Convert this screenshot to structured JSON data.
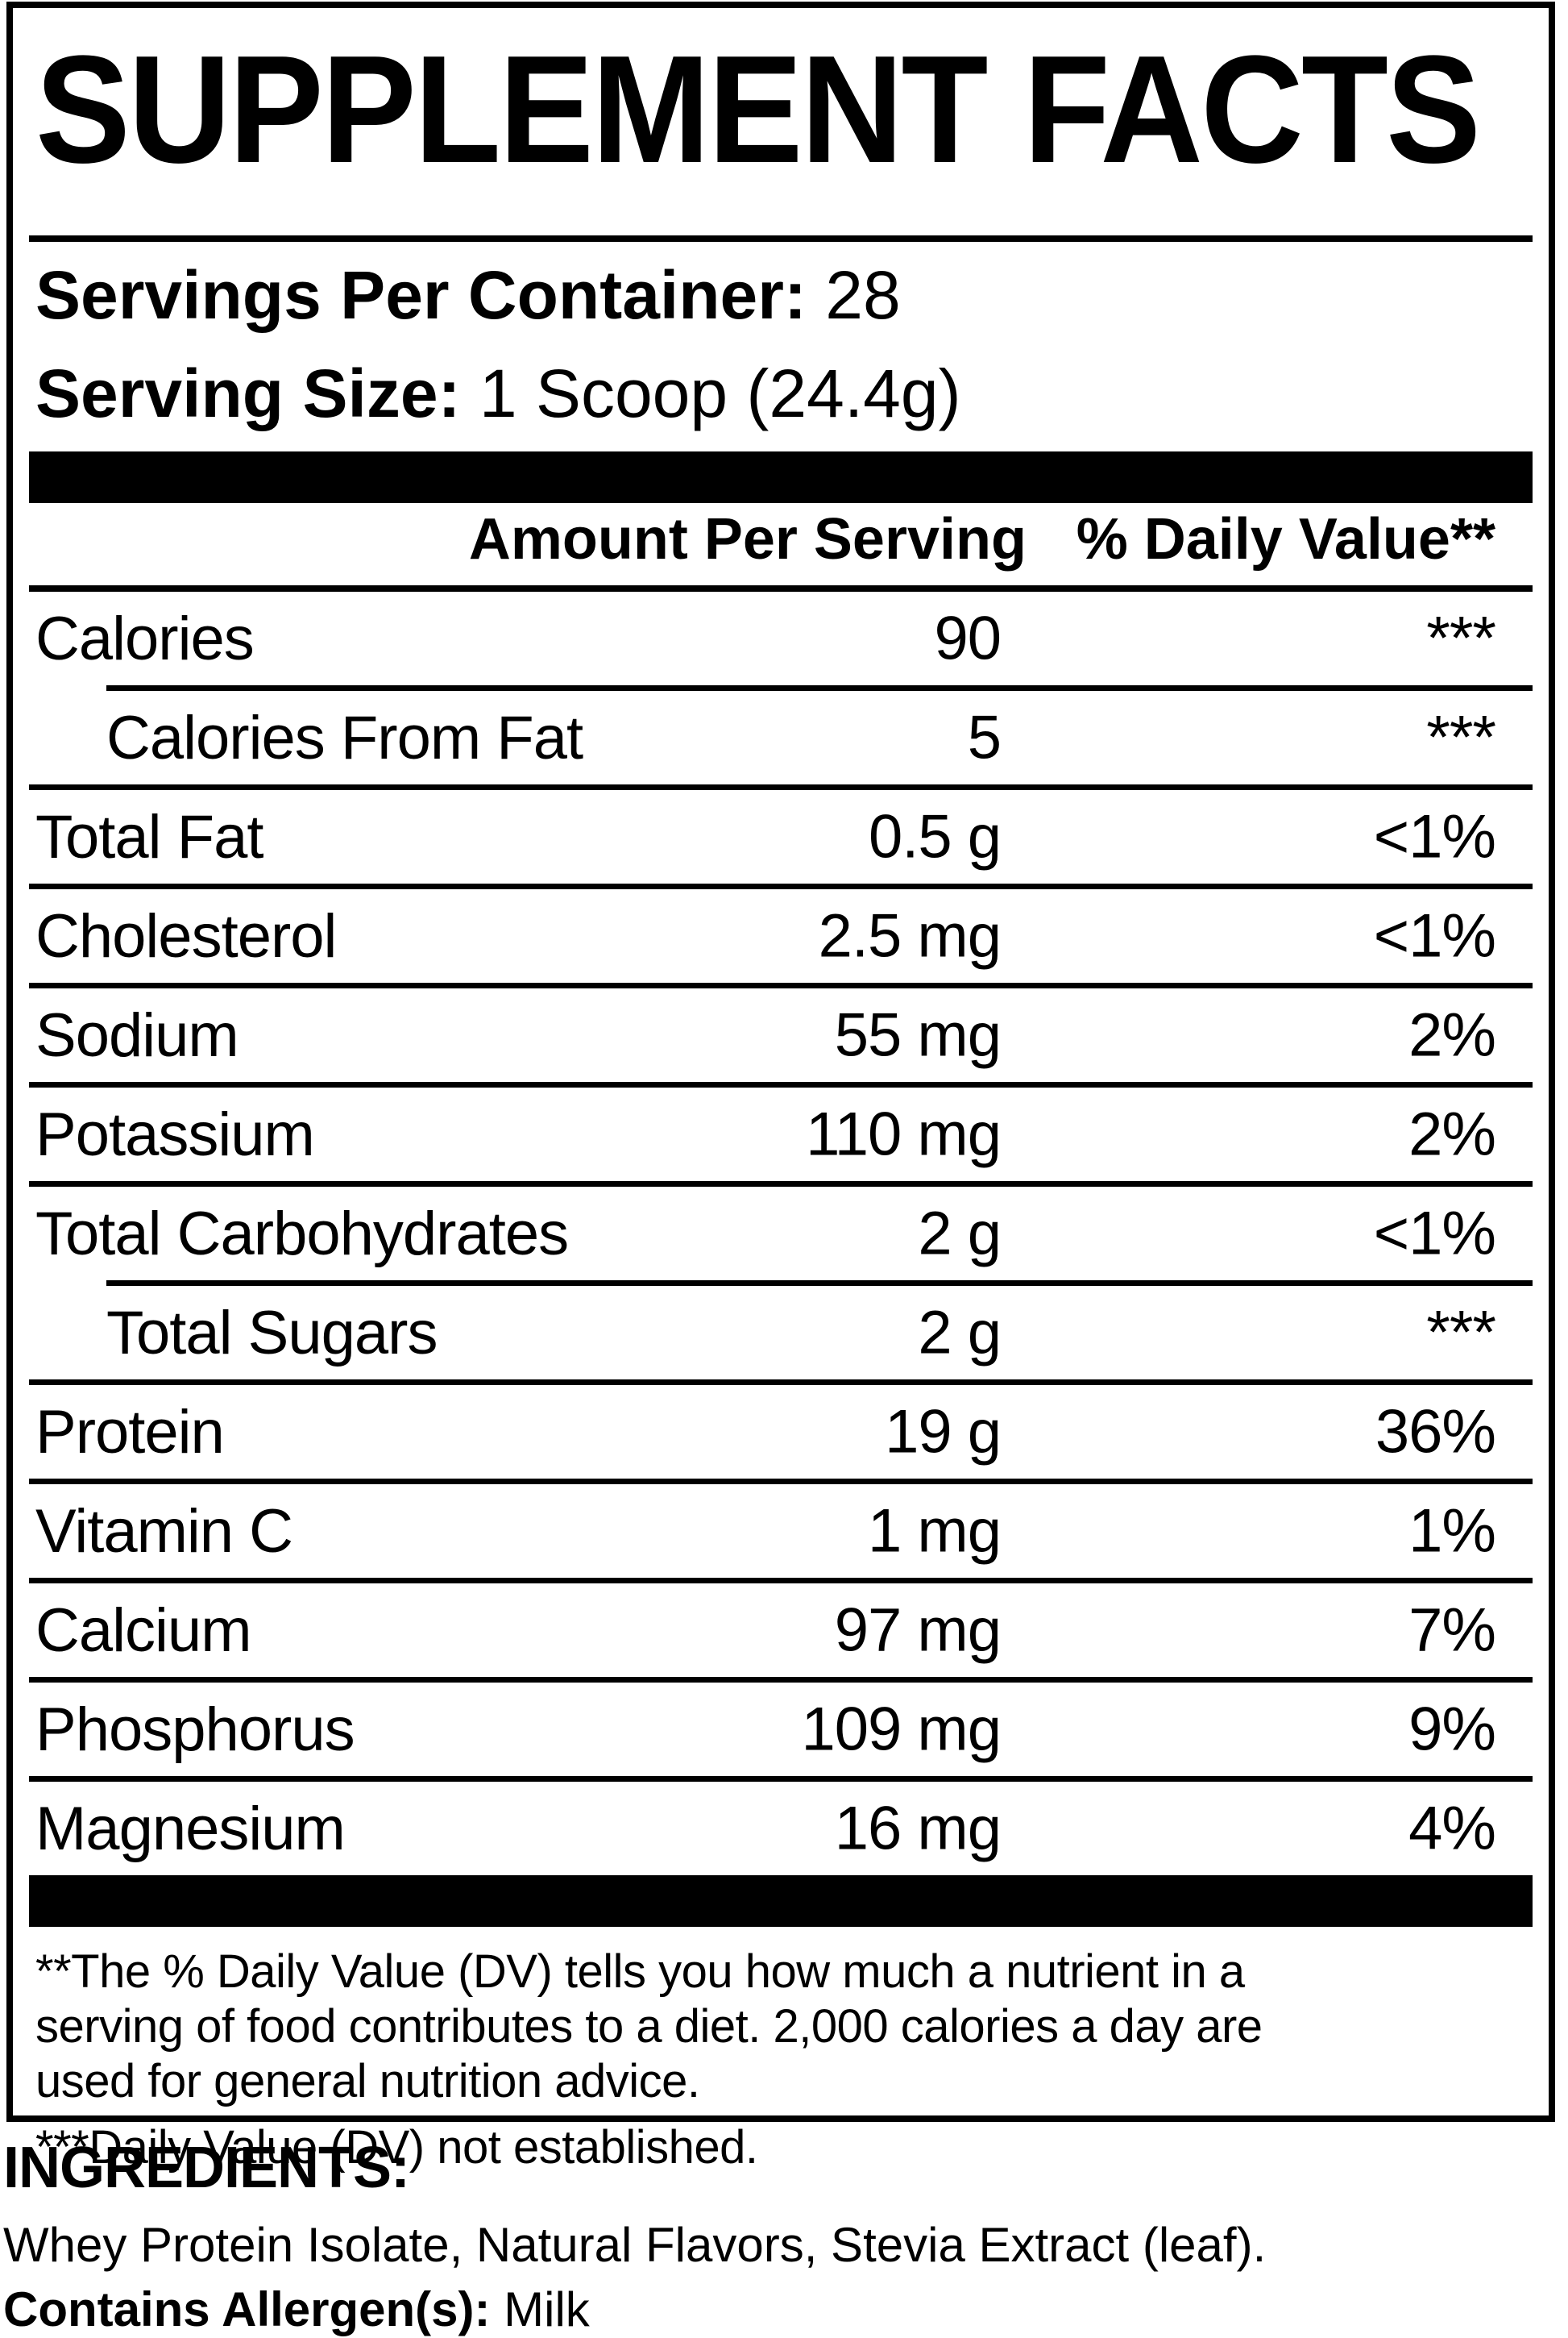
{
  "colors": {
    "ink": "#000000",
    "background": "#ffffff"
  },
  "panel": {
    "title": "SUPPLEMENT FACTS",
    "servings_label": "Servings Per Container:",
    "servings_value": "28",
    "serving_size_label": "Serving Size:",
    "serving_size_value": "1 Scoop (24.4g)"
  },
  "table": {
    "amount_header": "Amount Per Serving",
    "dv_header": "% Daily Value**",
    "rows": [
      {
        "name": "Calories",
        "amount": "90",
        "dv": "***"
      },
      {
        "name": "Calories From Fat",
        "amount": "5",
        "dv": "***"
      },
      {
        "name": "Total Fat",
        "amount": "0.5 g",
        "dv": "<1%"
      },
      {
        "name": "Cholesterol",
        "amount": "2.5 mg",
        "dv": "<1%"
      },
      {
        "name": "Sodium",
        "amount": "55 mg",
        "dv": "2%"
      },
      {
        "name": "Potassium",
        "amount": "110 mg",
        "dv": "2%"
      },
      {
        "name": "Total Carbohydrates",
        "amount": "2 g",
        "dv": "<1%"
      },
      {
        "name": "Total Sugars",
        "amount": "2 g",
        "dv": "***"
      },
      {
        "name": "Protein",
        "amount": "19 g",
        "dv": "36%"
      },
      {
        "name": "Vitamin C",
        "amount": "1 mg",
        "dv": "1%"
      },
      {
        "name": "Calcium",
        "amount": "97 mg",
        "dv": "7%"
      },
      {
        "name": "Phosphorus",
        "amount": "109 mg",
        "dv": "9%"
      },
      {
        "name": "Magnesium",
        "amount": "16 mg",
        "dv": "4%"
      }
    ]
  },
  "footnotes": {
    "dv_lines": [
      "**The % Daily Value (DV) tells you how much a nutrient in a",
      "serving of food contributes to a diet. 2,000 calories a day are",
      "used for general nutrition advice."
    ],
    "not_established": "***Daily Value (DV) not established."
  },
  "ingredients": {
    "heading": "INGREDIENTS:",
    "list": "Whey Protein Isolate, Natural Flavors, Stevia Extract (leaf).",
    "allergen_label": "Contains Allergen(s):",
    "allergen_value": "Milk"
  }
}
